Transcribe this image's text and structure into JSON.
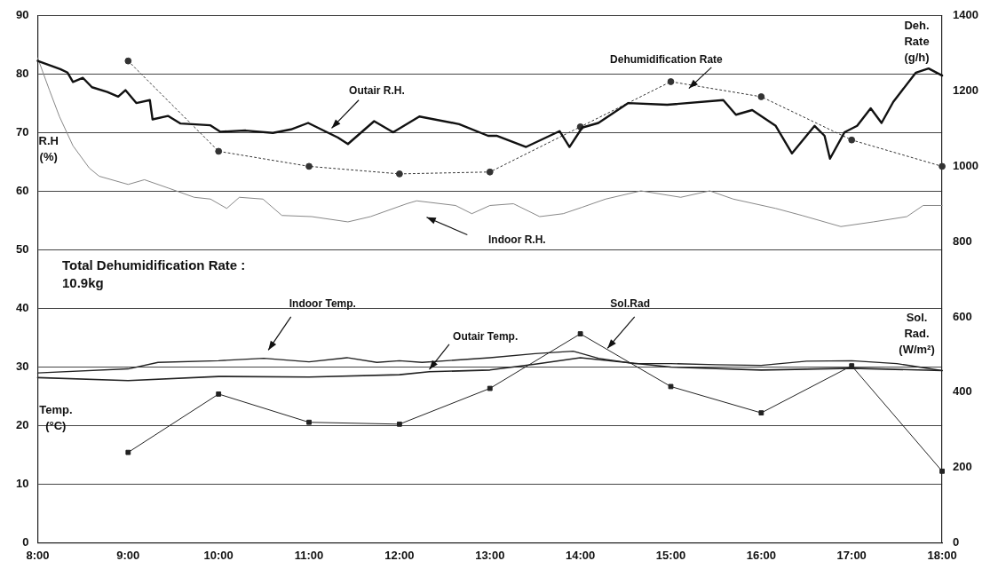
{
  "chart_data": {
    "type": "line",
    "xlim": [
      8,
      18
    ],
    "xticks": [
      {
        "value": 8,
        "label": "8:00"
      },
      {
        "value": 9,
        "label": "9:00"
      },
      {
        "value": 10,
        "label": "10:00"
      },
      {
        "value": 11,
        "label": "11:00"
      },
      {
        "value": 12,
        "label": "12:00"
      },
      {
        "value": 13,
        "label": "13:00"
      },
      {
        "value": 14,
        "label": "14:00"
      },
      {
        "value": 15,
        "label": "15:00"
      },
      {
        "value": 16,
        "label": "16:00"
      },
      {
        "value": 17,
        "label": "17:00"
      },
      {
        "value": 18,
        "label": "18:00"
      }
    ],
    "ylim": [
      0,
      90
    ],
    "yticks": [
      0,
      10,
      20,
      30,
      40,
      50,
      60,
      70,
      80,
      90
    ],
    "y2lim": [
      0,
      1400
    ],
    "y2ticks": [
      0,
      200,
      400,
      600,
      800,
      1000,
      1200,
      1400
    ],
    "ylabel": "R.H (%)",
    "y2label": "Deh. Rate (g/h)",
    "grid": "y",
    "legend": false,
    "annotations": [
      "Total Dehumidification Rate : 10.9kg",
      "Temp. (°C)",
      "Sol. Rad. (W/m²)"
    ],
    "series": [
      {
        "name": "Outair R.H.",
        "color": "#111111",
        "marker": "none",
        "x": [
          8,
          8.25,
          8.33,
          8.39,
          8.5,
          8.6,
          8.77,
          8.89,
          8.97,
          9.09,
          9.24,
          9.27,
          9.44,
          9.58,
          9.91,
          10.02,
          10.3,
          10.6,
          10.8,
          10.99,
          11.32,
          11.43,
          11.72,
          11.93,
          12.22,
          12.66,
          12.98,
          13.08,
          13.4,
          13.77,
          13.88,
          14.02,
          14.2,
          14.53,
          14.96,
          15.58,
          15.72,
          15.9,
          16.16,
          16.34,
          16.59,
          16.7,
          16.76,
          16.92,
          17.06,
          17.21,
          17.33,
          17.46,
          17.71,
          17.85,
          18
        ],
        "values": [
          82.3,
          80.9,
          80.3,
          78.7,
          79.4,
          77.8,
          77,
          76.2,
          77.3,
          75.1,
          75.6,
          72.3,
          72.9,
          71.6,
          71.3,
          70.2,
          70.4,
          70,
          70.6,
          71.7,
          69.2,
          68.1,
          72,
          70.1,
          72.8,
          71.5,
          69.5,
          69.5,
          67.6,
          70.3,
          67.6,
          70.9,
          71.7,
          75.1,
          74.8,
          75.6,
          73.1,
          73.9,
          71.2,
          66.5,
          71.2,
          69.5,
          65.6,
          70.1,
          71.2,
          74.2,
          71.7,
          75.3,
          80.3,
          81,
          79.8
        ]
      },
      {
        "name": "Indoor R.H.",
        "color": "#888888",
        "marker": "none",
        "x": [
          8,
          8.13,
          8.24,
          8.39,
          8.57,
          8.68,
          9,
          9.18,
          9.44,
          9.73,
          9.91,
          10.09,
          10.23,
          10.49,
          10.7,
          11.03,
          11.43,
          11.68,
          12.08,
          12.19,
          12.62,
          12.8,
          13,
          13.26,
          13.55,
          13.81,
          14.02,
          14.28,
          14.67,
          15.11,
          15.43,
          15.69,
          16.16,
          16.45,
          16.88,
          17.24,
          17.61,
          17.79,
          18
        ],
        "values": [
          82.8,
          77.3,
          72.8,
          67.8,
          64,
          62.6,
          61.2,
          62,
          60.6,
          59,
          58.7,
          57.1,
          59,
          58.7,
          55.9,
          55.7,
          54.8,
          55.7,
          57.9,
          58.4,
          57.6,
          56.2,
          57.6,
          57.9,
          55.7,
          56.2,
          57.3,
          58.7,
          60.1,
          59,
          60.1,
          58.7,
          57.1,
          55.9,
          54,
          54.8,
          55.7,
          57.6,
          57.6
        ]
      },
      {
        "name": "Dehumidification Rate",
        "axis": "y2",
        "color": "#333333",
        "marker": "circle",
        "line_style": "dotted",
        "x": [
          9,
          10,
          11,
          12,
          13,
          14,
          15,
          16,
          17,
          18
        ],
        "values": [
          1280,
          1040,
          1000,
          980,
          985,
          1105,
          1225,
          1185,
          1070,
          1000
        ]
      },
      {
        "name": "Indoor Temp.",
        "color": "#222222",
        "marker": "none",
        "x": [
          8,
          9,
          9.33,
          10,
          10.5,
          11,
          11.42,
          11.75,
          12,
          12.25,
          13,
          13.5,
          13.92,
          14.2,
          14.6,
          15,
          15.5,
          16,
          16.5,
          17,
          17.5,
          18
        ],
        "values": [
          29,
          29.7,
          30.8,
          31.1,
          31.5,
          30.9,
          31.6,
          30.8,
          31.1,
          30.8,
          31.6,
          32.3,
          32.7,
          31.5,
          30.6,
          30.6,
          30.4,
          30.3,
          31,
          31.1,
          30.6,
          29.4
        ]
      },
      {
        "name": "Outair Temp.",
        "color": "#222222",
        "marker": "none",
        "x": [
          8,
          9,
          10,
          11,
          12,
          12.33,
          13,
          13.5,
          14,
          14.5,
          15,
          16,
          17,
          18
        ],
        "values": [
          28.2,
          27.7,
          28.4,
          28.3,
          28.7,
          29.2,
          29.5,
          30.5,
          31.6,
          30.8,
          30,
          29.5,
          29.8,
          29.4
        ]
      },
      {
        "name": "Sol.Rad",
        "axis": "y2",
        "color": "#222222",
        "marker": "square",
        "x": [
          9,
          10,
          11,
          12,
          13,
          14,
          15,
          16,
          17,
          18
        ],
        "values": [
          240,
          395,
          320,
          315,
          410,
          555,
          415,
          345,
          470,
          190
        ]
      }
    ]
  }
}
